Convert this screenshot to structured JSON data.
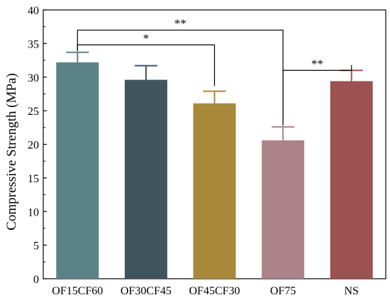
{
  "chart_data": {
    "type": "bar",
    "title": "",
    "xlabel": "",
    "ylabel": "Compressive Strength (MPa)",
    "ylim": [
      0,
      40
    ],
    "yticks": [
      0,
      5,
      10,
      15,
      20,
      25,
      30,
      35,
      40
    ],
    "categories": [
      "OF15CF60",
      "OF30CF45",
      "OF45CF30",
      "OF75",
      "NS"
    ],
    "values": [
      32.2,
      29.6,
      26.1,
      20.6,
      29.4
    ],
    "error_bars": [
      1.5,
      2.1,
      1.8,
      2.0,
      1.6
    ],
    "colors": [
      "#5c8289",
      "#3f545c",
      "#a8893a",
      "#ac8389",
      "#9b5250"
    ],
    "grid": false,
    "legend": "none",
    "significance": [
      {
        "from": 0,
        "to": 3,
        "label": "**"
      },
      {
        "from": 0,
        "to": 2,
        "label": "*"
      },
      {
        "from": 3,
        "to": 4,
        "label": "**"
      }
    ]
  }
}
